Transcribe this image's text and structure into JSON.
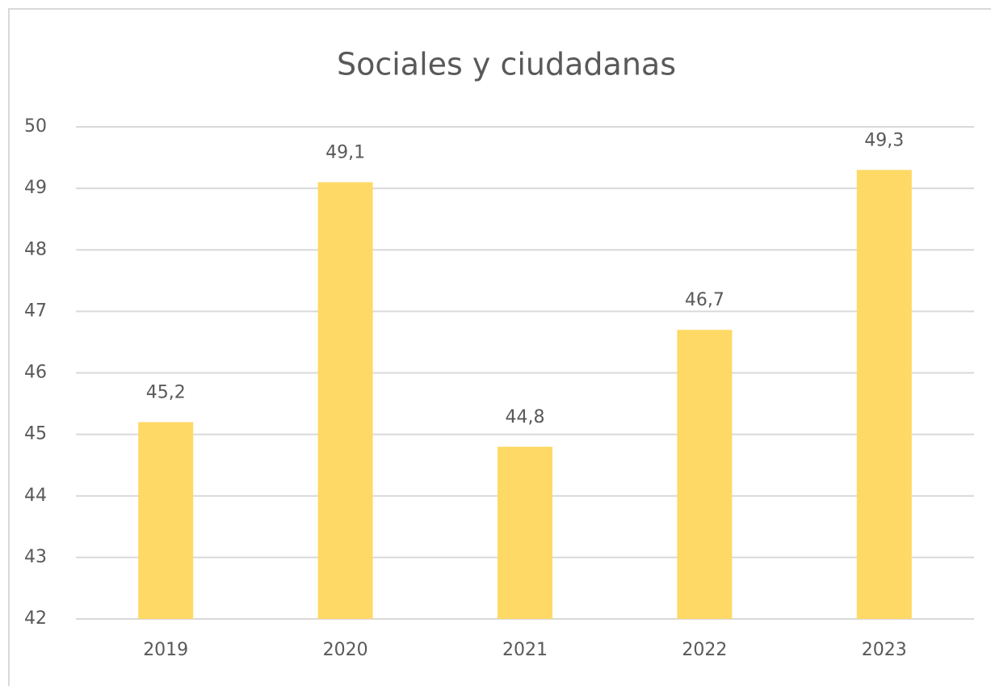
{
  "chart_data": {
    "type": "bar",
    "title": "Sociales y ciudadanas",
    "categories": [
      "2019",
      "2020",
      "2021",
      "2022",
      "2023"
    ],
    "values": [
      45.2,
      49.1,
      44.8,
      46.7,
      49.3
    ],
    "value_labels": [
      "45,2",
      "49,1",
      "44,8",
      "46,7",
      "49,3"
    ],
    "color": "#ffd966",
    "ylim": [
      42,
      50
    ],
    "yticks": [
      42,
      43,
      44,
      45,
      46,
      47,
      48,
      49,
      50
    ],
    "grid": true
  }
}
